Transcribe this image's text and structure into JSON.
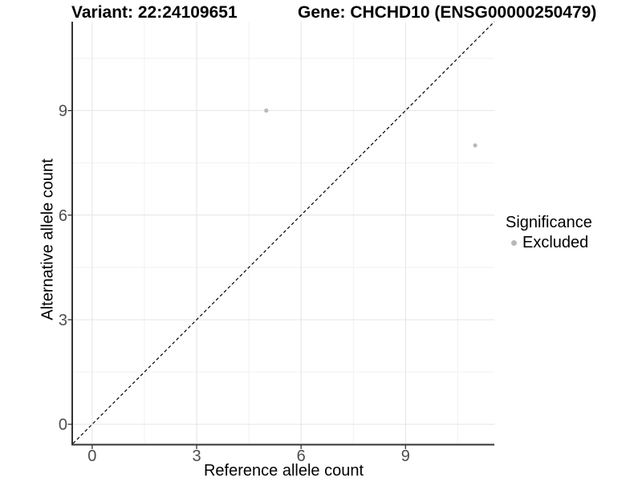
{
  "page": {
    "background": "#ffffff"
  },
  "chart_data": {
    "type": "scatter",
    "title_left": "Variant: 22:24109651",
    "title_right": "Gene: CHCHD10 (ENSG00000250479)",
    "xlabel": "Reference allele count",
    "ylabel": "Alternative allele count",
    "x_ticks": [
      0,
      3,
      6,
      9
    ],
    "y_ticks": [
      0,
      3,
      6,
      9
    ],
    "minor_ticks": [
      1.5,
      4.5,
      7.5,
      10.5
    ],
    "axis_range": [
      -0.55,
      11.55
    ],
    "grid": "major+minor",
    "legend_position": "right",
    "identity_line": {
      "slope": 1,
      "intercept": 0,
      "style": "dashed",
      "color": "#000000"
    },
    "points": [
      {
        "x": 5,
        "y": 9,
        "significance": "Excluded"
      },
      {
        "x": 11,
        "y": 8,
        "significance": "Excluded"
      }
    ],
    "legend": {
      "title": "Significance",
      "entries": [
        {
          "label": "Excluded",
          "color": "#b9b9b9"
        }
      ]
    },
    "colors": {
      "point": "#b9b9b9",
      "grid_major": "#e4e4e4",
      "grid_minor": "#f1f1f1",
      "axis": "#333333",
      "tick_label": "#4d4d4d",
      "text": "#000000"
    }
  }
}
